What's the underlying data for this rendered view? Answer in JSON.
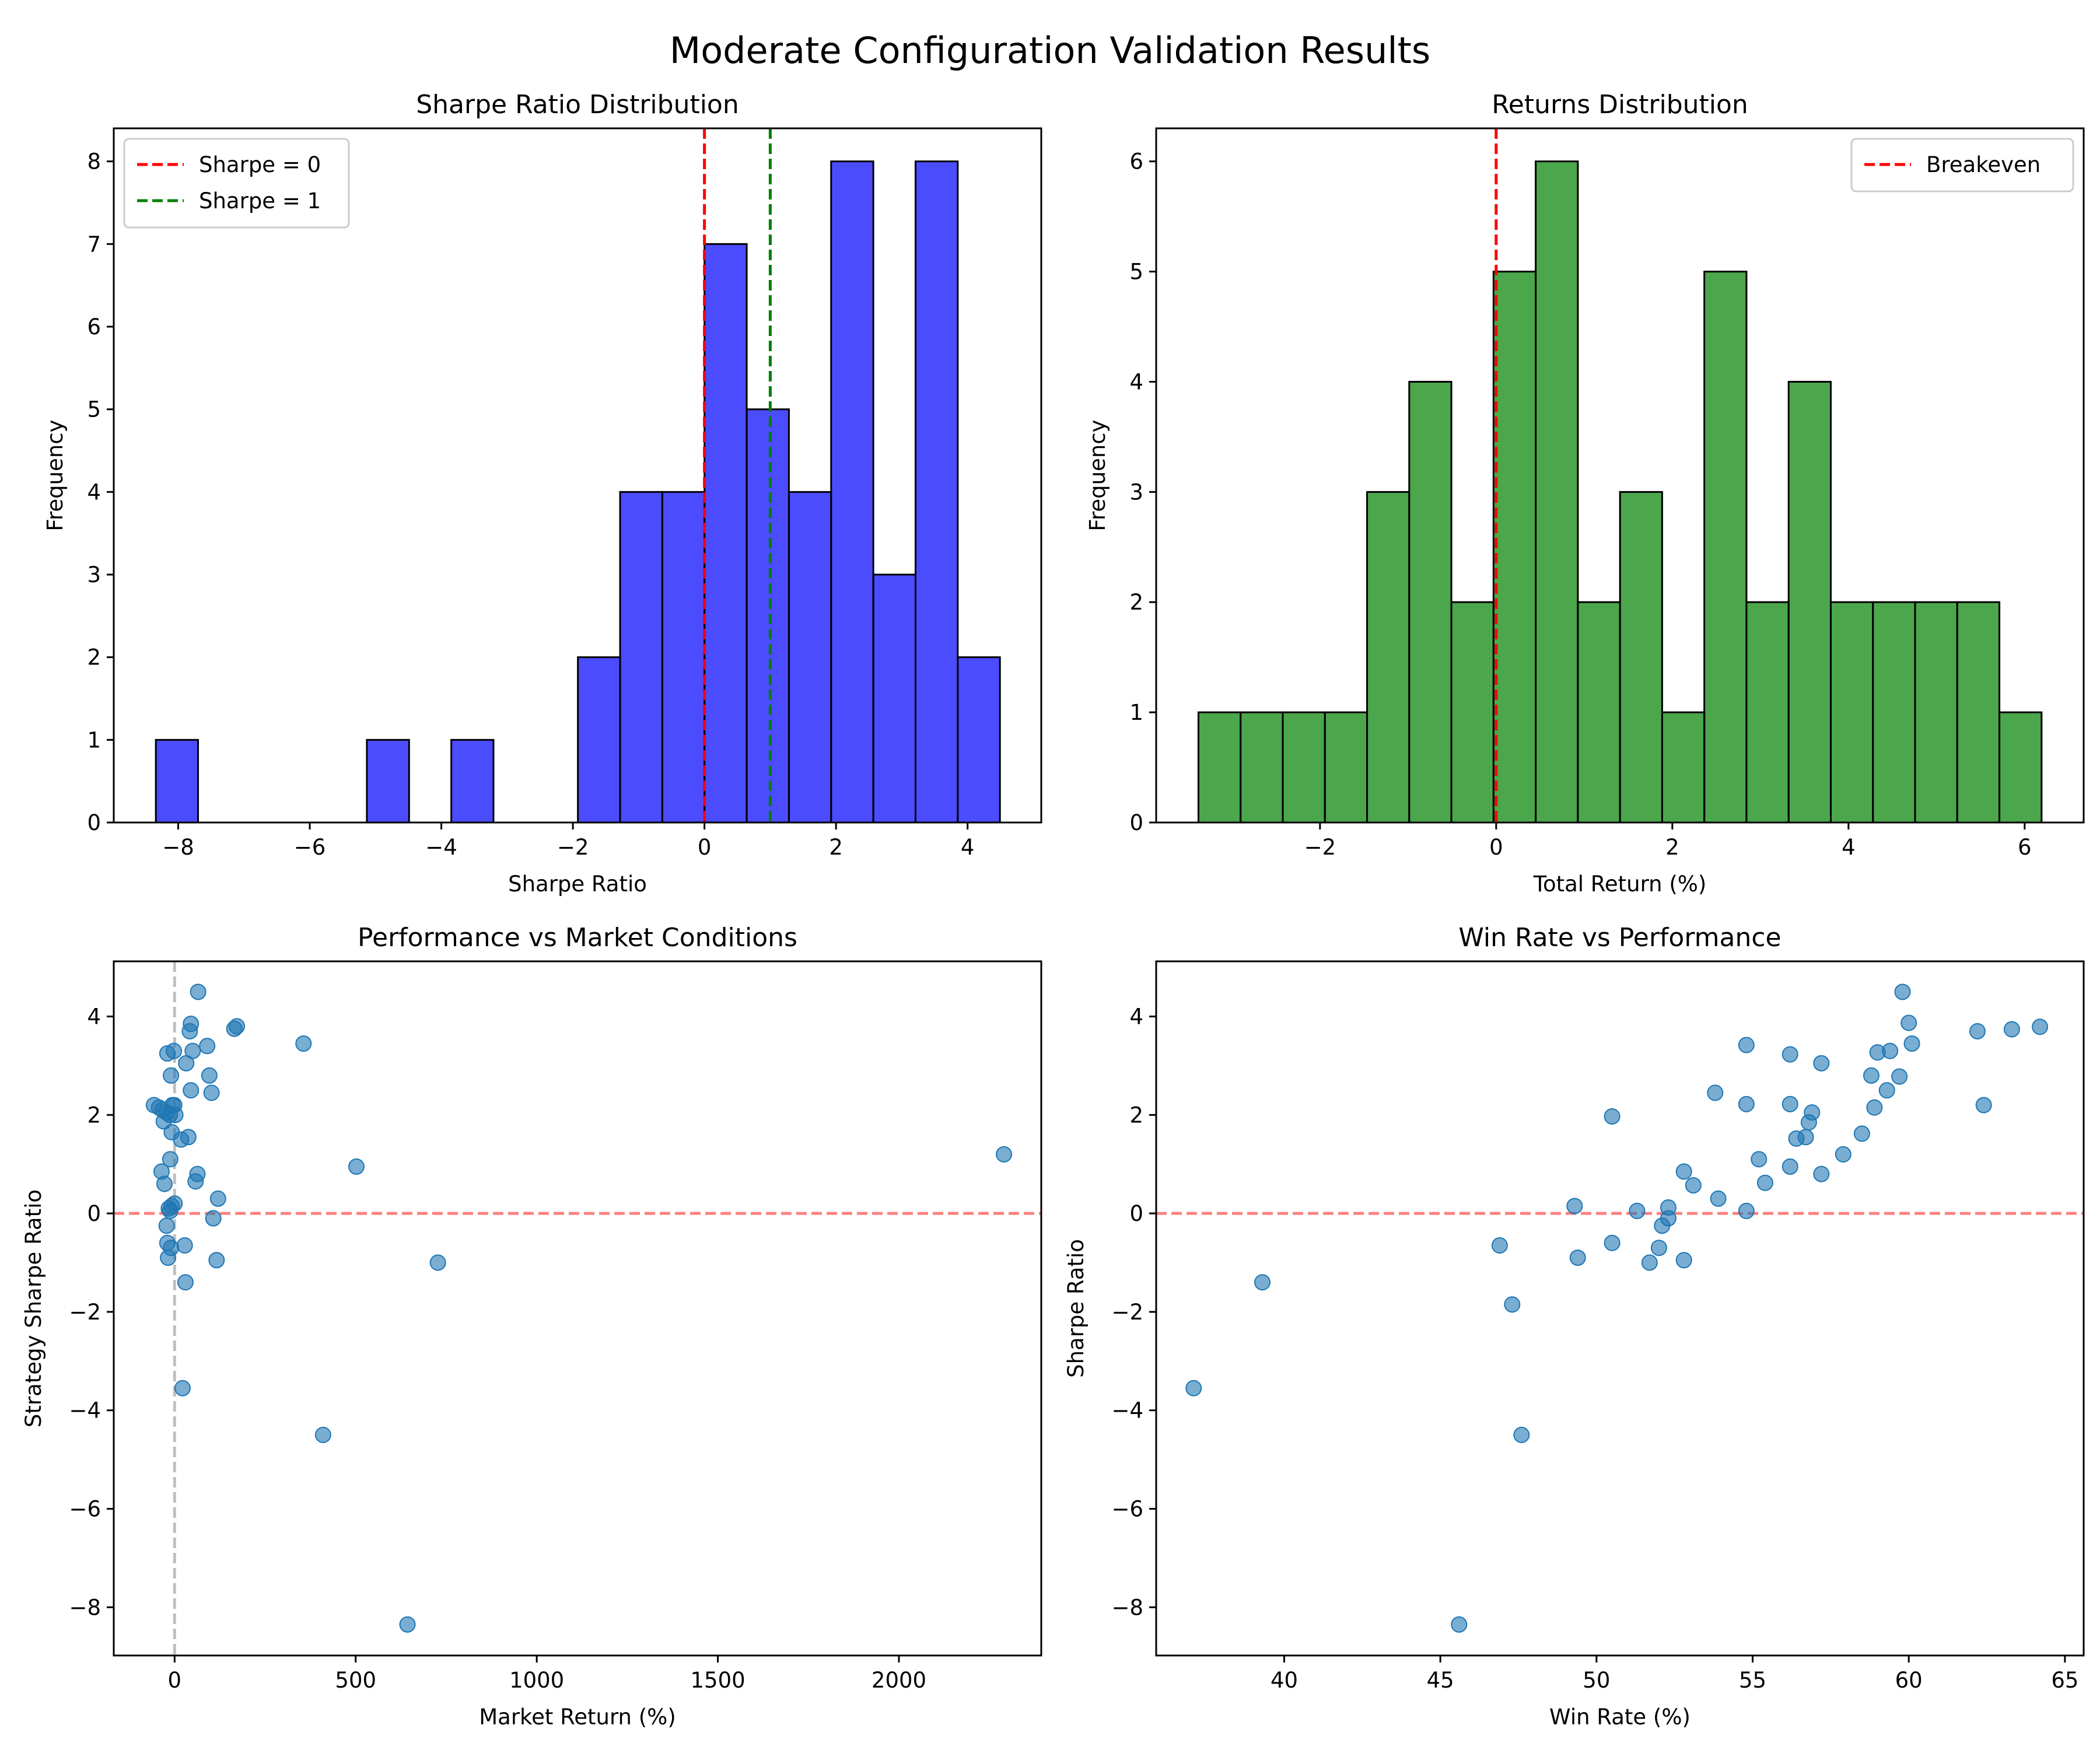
{
  "figure_title": "Moderate Configuration Validation Results",
  "chart_data": [
    {
      "type": "histogram",
      "title": "Sharpe Ratio Distribution",
      "xlabel": "Sharpe Ratio",
      "ylabel": "Frequency",
      "xlim": [
        -8.98,
        5.12
      ],
      "ylim": [
        0,
        8.4
      ],
      "xticks": [
        -8,
        -6,
        -4,
        -2,
        0,
        2,
        4
      ],
      "yticks": [
        0,
        1,
        2,
        3,
        4,
        5,
        6,
        7,
        8
      ],
      "bar_color": "#0000ff",
      "bin_start": -8.34,
      "bin_width": 0.6416,
      "counts": [
        1,
        0,
        0,
        0,
        0,
        1,
        0,
        1,
        0,
        0,
        2,
        4,
        4,
        7,
        5,
        4,
        8,
        3,
        8,
        2
      ],
      "reference_lines": [
        {
          "x": 0,
          "label": "Sharpe = 0",
          "color": "#ff0000"
        },
        {
          "x": 1,
          "label": "Sharpe = 1",
          "color": "#008000"
        }
      ],
      "legend": {
        "entries": [
          "Sharpe = 0",
          "Sharpe = 1"
        ],
        "loc": "upper-left"
      }
    },
    {
      "type": "histogram",
      "title": "Returns Distribution",
      "xlabel": "Total Return (%)",
      "ylabel": "Frequency",
      "xlim": [
        -3.86,
        6.67
      ],
      "ylim": [
        0,
        6.3
      ],
      "xticks": [
        -2,
        0,
        2,
        4,
        6
      ],
      "yticks": [
        0,
        1,
        2,
        3,
        4,
        5,
        6
      ],
      "bar_color": "#008000",
      "bin_start": -3.38,
      "bin_width": 0.4786,
      "counts": [
        1,
        1,
        1,
        1,
        3,
        4,
        2,
        5,
        6,
        2,
        3,
        1,
        5,
        2,
        4,
        2,
        2,
        2,
        2,
        1
      ],
      "reference_lines": [
        {
          "x": 0,
          "label": "Breakeven",
          "color": "#ff0000"
        }
      ],
      "legend": {
        "entries": [
          "Breakeven"
        ],
        "loc": "upper-right"
      }
    },
    {
      "type": "scatter",
      "title": "Performance vs Market Conditions",
      "xlabel": "Market Return (%)",
      "ylabel": "Strategy Sharpe Ratio",
      "xlim": [
        -168,
        2393
      ],
      "ylim": [
        -8.98,
        5.12
      ],
      "xticks": [
        0,
        500,
        1000,
        1500,
        2000
      ],
      "yticks": [
        -8,
        -6,
        -4,
        -2,
        0,
        2,
        4
      ],
      "point_color": "#1f77b4",
      "hline": {
        "y": 0,
        "color": "#ff0000"
      },
      "vline": {
        "x": 0,
        "color": "#808080"
      },
      "points": [
        [
          -57,
          2.2
        ],
        [
          -43,
          2.15
        ],
        [
          -33,
          2.1
        ],
        [
          -30,
          1.87
        ],
        [
          -22,
          2.05
        ],
        [
          -13,
          2.0
        ],
        [
          -6,
          2.2
        ],
        [
          -1,
          2.2
        ],
        [
          2,
          2.0
        ],
        [
          -20,
          3.25
        ],
        [
          -10,
          2.8
        ],
        [
          -2,
          3.3
        ],
        [
          -36,
          0.85
        ],
        [
          -28,
          0.6
        ],
        [
          -22,
          -0.25
        ],
        [
          -20,
          -0.6
        ],
        [
          -18,
          -0.9
        ],
        [
          -16,
          0.1
        ],
        [
          -12,
          0.05
        ],
        [
          -8,
          0.15
        ],
        [
          0,
          0.2
        ],
        [
          -10,
          -0.7
        ],
        [
          -12,
          1.1
        ],
        [
          -8,
          1.65
        ],
        [
          18,
          1.5
        ],
        [
          22,
          -3.55
        ],
        [
          28,
          -0.65
        ],
        [
          30,
          -1.4
        ],
        [
          32,
          3.05
        ],
        [
          38,
          1.55
        ],
        [
          42,
          3.7
        ],
        [
          45,
          3.85
        ],
        [
          45,
          2.5
        ],
        [
          50,
          3.3
        ],
        [
          58,
          0.65
        ],
        [
          63,
          0.8
        ],
        [
          65,
          4.5
        ],
        [
          90,
          3.4
        ],
        [
          96,
          2.8
        ],
        [
          102,
          2.45
        ],
        [
          107,
          -0.1
        ],
        [
          116,
          -0.95
        ],
        [
          120,
          0.3
        ],
        [
          165,
          3.75
        ],
        [
          172,
          3.8
        ],
        [
          356,
          3.45
        ],
        [
          410,
          -4.5
        ],
        [
          502,
          0.95
        ],
        [
          643,
          -8.35
        ],
        [
          727,
          -1.0
        ],
        [
          2290,
          1.2
        ]
      ]
    },
    {
      "type": "scatter",
      "title": "Win Rate vs Performance",
      "xlabel": "Win Rate (%)",
      "ylabel": "Sharpe Ratio",
      "xlim": [
        35.9,
        65.6
      ],
      "ylim": [
        -8.98,
        5.12
      ],
      "xticks": [
        40,
        45,
        50,
        55,
        60,
        65
      ],
      "yticks": [
        -8,
        -6,
        -4,
        -2,
        0,
        2,
        4
      ],
      "point_color": "#1f77b4",
      "hline": {
        "y": 0,
        "color": "#ff0000"
      },
      "points": [
        [
          37.1,
          -3.55
        ],
        [
          39.3,
          -1.4
        ],
        [
          45.6,
          -8.35
        ],
        [
          46.9,
          -0.65
        ],
        [
          47.3,
          -1.85
        ],
        [
          47.6,
          -4.5
        ],
        [
          49.3,
          0.15
        ],
        [
          49.4,
          -0.9
        ],
        [
          50.5,
          -0.6
        ],
        [
          50.5,
          1.97
        ],
        [
          51.3,
          0.05
        ],
        [
          51.7,
          -1.0
        ],
        [
          52.0,
          -0.7
        ],
        [
          52.1,
          -0.25
        ],
        [
          52.3,
          -0.1
        ],
        [
          52.3,
          0.12
        ],
        [
          52.8,
          -0.95
        ],
        [
          52.8,
          0.85
        ],
        [
          53.1,
          0.57
        ],
        [
          53.8,
          2.45
        ],
        [
          53.9,
          0.3
        ],
        [
          54.8,
          3.42
        ],
        [
          54.8,
          2.22
        ],
        [
          54.8,
          0.05
        ],
        [
          55.2,
          1.1
        ],
        [
          55.4,
          0.62
        ],
        [
          56.2,
          3.23
        ],
        [
          56.2,
          2.22
        ],
        [
          56.2,
          0.95
        ],
        [
          56.4,
          1.52
        ],
        [
          56.7,
          1.55
        ],
        [
          56.8,
          1.85
        ],
        [
          56.9,
          2.05
        ],
        [
          57.2,
          3.05
        ],
        [
          57.2,
          0.8
        ],
        [
          57.9,
          1.2
        ],
        [
          58.5,
          1.62
        ],
        [
          58.8,
          2.8
        ],
        [
          58.9,
          2.15
        ],
        [
          59.0,
          3.27
        ],
        [
          59.3,
          2.5
        ],
        [
          59.4,
          3.3
        ],
        [
          59.7,
          2.78
        ],
        [
          59.8,
          4.5
        ],
        [
          60.0,
          3.87
        ],
        [
          60.1,
          3.45
        ],
        [
          62.2,
          3.7
        ],
        [
          62.4,
          2.2
        ],
        [
          63.3,
          3.74
        ],
        [
          64.2,
          3.79
        ]
      ]
    }
  ]
}
